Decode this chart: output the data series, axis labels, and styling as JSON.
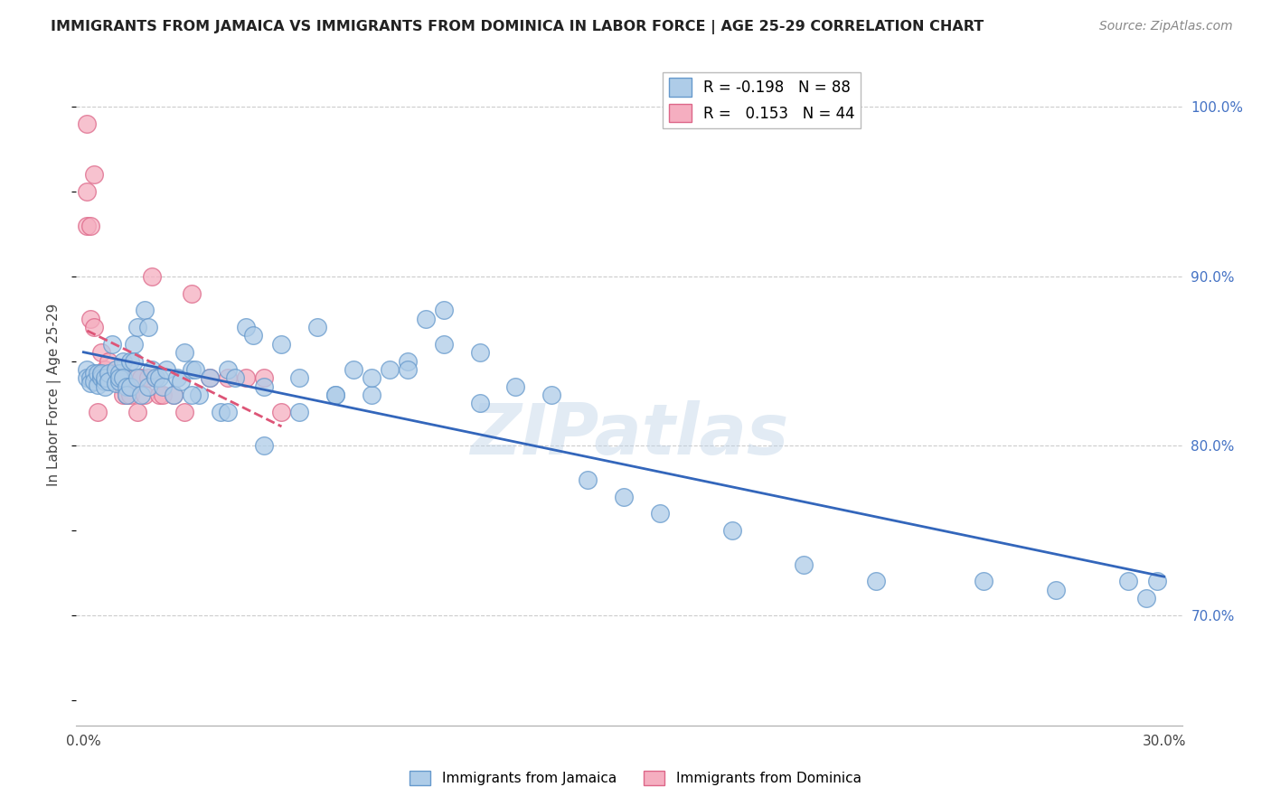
{
  "title": "IMMIGRANTS FROM JAMAICA VS IMMIGRANTS FROM DOMINICA IN LABOR FORCE | AGE 25-29 CORRELATION CHART",
  "source": "Source: ZipAtlas.com",
  "ylabel": "In Labor Force | Age 25-29",
  "xlim": [
    -0.002,
    0.305
  ],
  "ylim": [
    0.635,
    1.025
  ],
  "xtick_positions": [
    0.0,
    0.05,
    0.1,
    0.15,
    0.2,
    0.25,
    0.3
  ],
  "xtick_labels": [
    "0.0%",
    "",
    "",
    "",
    "",
    "",
    "30.0%"
  ],
  "yticks_right": [
    0.7,
    0.8,
    0.9,
    1.0
  ],
  "ytick_labels_right": [
    "70.0%",
    "80.0%",
    "90.0%",
    "100.0%"
  ],
  "jamaica_color": "#aecce8",
  "dominica_color": "#f5aec0",
  "jamaica_edge": "#6699cc",
  "dominica_edge": "#dd6688",
  "trend_jamaica_color": "#3366bb",
  "trend_dominica_color": "#dd5577",
  "legend_R_jamaica": "-0.198",
  "legend_N_jamaica": "88",
  "legend_R_dominica": "0.153",
  "legend_N_dominica": "44",
  "watermark": "ZIPatlas",
  "jamaica_x": [
    0.001,
    0.001,
    0.002,
    0.002,
    0.003,
    0.003,
    0.004,
    0.004,
    0.005,
    0.005,
    0.005,
    0.006,
    0.006,
    0.006,
    0.007,
    0.007,
    0.008,
    0.009,
    0.009,
    0.01,
    0.01,
    0.01,
    0.011,
    0.011,
    0.012,
    0.012,
    0.013,
    0.013,
    0.014,
    0.014,
    0.015,
    0.015,
    0.016,
    0.017,
    0.018,
    0.018,
    0.019,
    0.02,
    0.021,
    0.022,
    0.023,
    0.025,
    0.026,
    0.027,
    0.028,
    0.03,
    0.031,
    0.032,
    0.035,
    0.038,
    0.04,
    0.042,
    0.045,
    0.047,
    0.05,
    0.055,
    0.06,
    0.065,
    0.07,
    0.075,
    0.08,
    0.085,
    0.09,
    0.095,
    0.1,
    0.11,
    0.12,
    0.13,
    0.14,
    0.15,
    0.16,
    0.18,
    0.2,
    0.22,
    0.25,
    0.27,
    0.29,
    0.295,
    0.298,
    0.03,
    0.04,
    0.05,
    0.06,
    0.07,
    0.08,
    0.09,
    0.1,
    0.11
  ],
  "jamaica_y": [
    0.845,
    0.84,
    0.84,
    0.837,
    0.843,
    0.838,
    0.836,
    0.843,
    0.842,
    0.84,
    0.843,
    0.838,
    0.835,
    0.84,
    0.843,
    0.838,
    0.86,
    0.837,
    0.845,
    0.838,
    0.843,
    0.84,
    0.85,
    0.84,
    0.835,
    0.83,
    0.85,
    0.835,
    0.86,
    0.85,
    0.87,
    0.84,
    0.83,
    0.88,
    0.87,
    0.835,
    0.845,
    0.84,
    0.84,
    0.835,
    0.845,
    0.83,
    0.84,
    0.838,
    0.855,
    0.845,
    0.845,
    0.83,
    0.84,
    0.82,
    0.845,
    0.84,
    0.87,
    0.865,
    0.835,
    0.86,
    0.84,
    0.87,
    0.83,
    0.845,
    0.83,
    0.845,
    0.85,
    0.875,
    0.88,
    0.825,
    0.835,
    0.83,
    0.78,
    0.77,
    0.76,
    0.75,
    0.73,
    0.72,
    0.72,
    0.715,
    0.72,
    0.71,
    0.72,
    0.83,
    0.82,
    0.8,
    0.82,
    0.83,
    0.84,
    0.845,
    0.86,
    0.855
  ],
  "dominica_x": [
    0.001,
    0.001,
    0.001,
    0.002,
    0.002,
    0.003,
    0.003,
    0.003,
    0.004,
    0.004,
    0.005,
    0.005,
    0.005,
    0.006,
    0.006,
    0.007,
    0.007,
    0.007,
    0.008,
    0.008,
    0.009,
    0.009,
    0.01,
    0.011,
    0.011,
    0.012,
    0.013,
    0.014,
    0.015,
    0.016,
    0.017,
    0.018,
    0.019,
    0.02,
    0.021,
    0.022,
    0.025,
    0.028,
    0.03,
    0.035,
    0.04,
    0.045,
    0.05,
    0.055
  ],
  "dominica_y": [
    0.99,
    0.95,
    0.93,
    0.93,
    0.875,
    0.96,
    0.87,
    0.84,
    0.84,
    0.82,
    0.855,
    0.84,
    0.84,
    0.845,
    0.84,
    0.85,
    0.84,
    0.84,
    0.84,
    0.84,
    0.843,
    0.84,
    0.84,
    0.835,
    0.83,
    0.83,
    0.83,
    0.84,
    0.82,
    0.84,
    0.83,
    0.84,
    0.9,
    0.84,
    0.83,
    0.83,
    0.83,
    0.82,
    0.89,
    0.84,
    0.84,
    0.84,
    0.84,
    0.82
  ]
}
